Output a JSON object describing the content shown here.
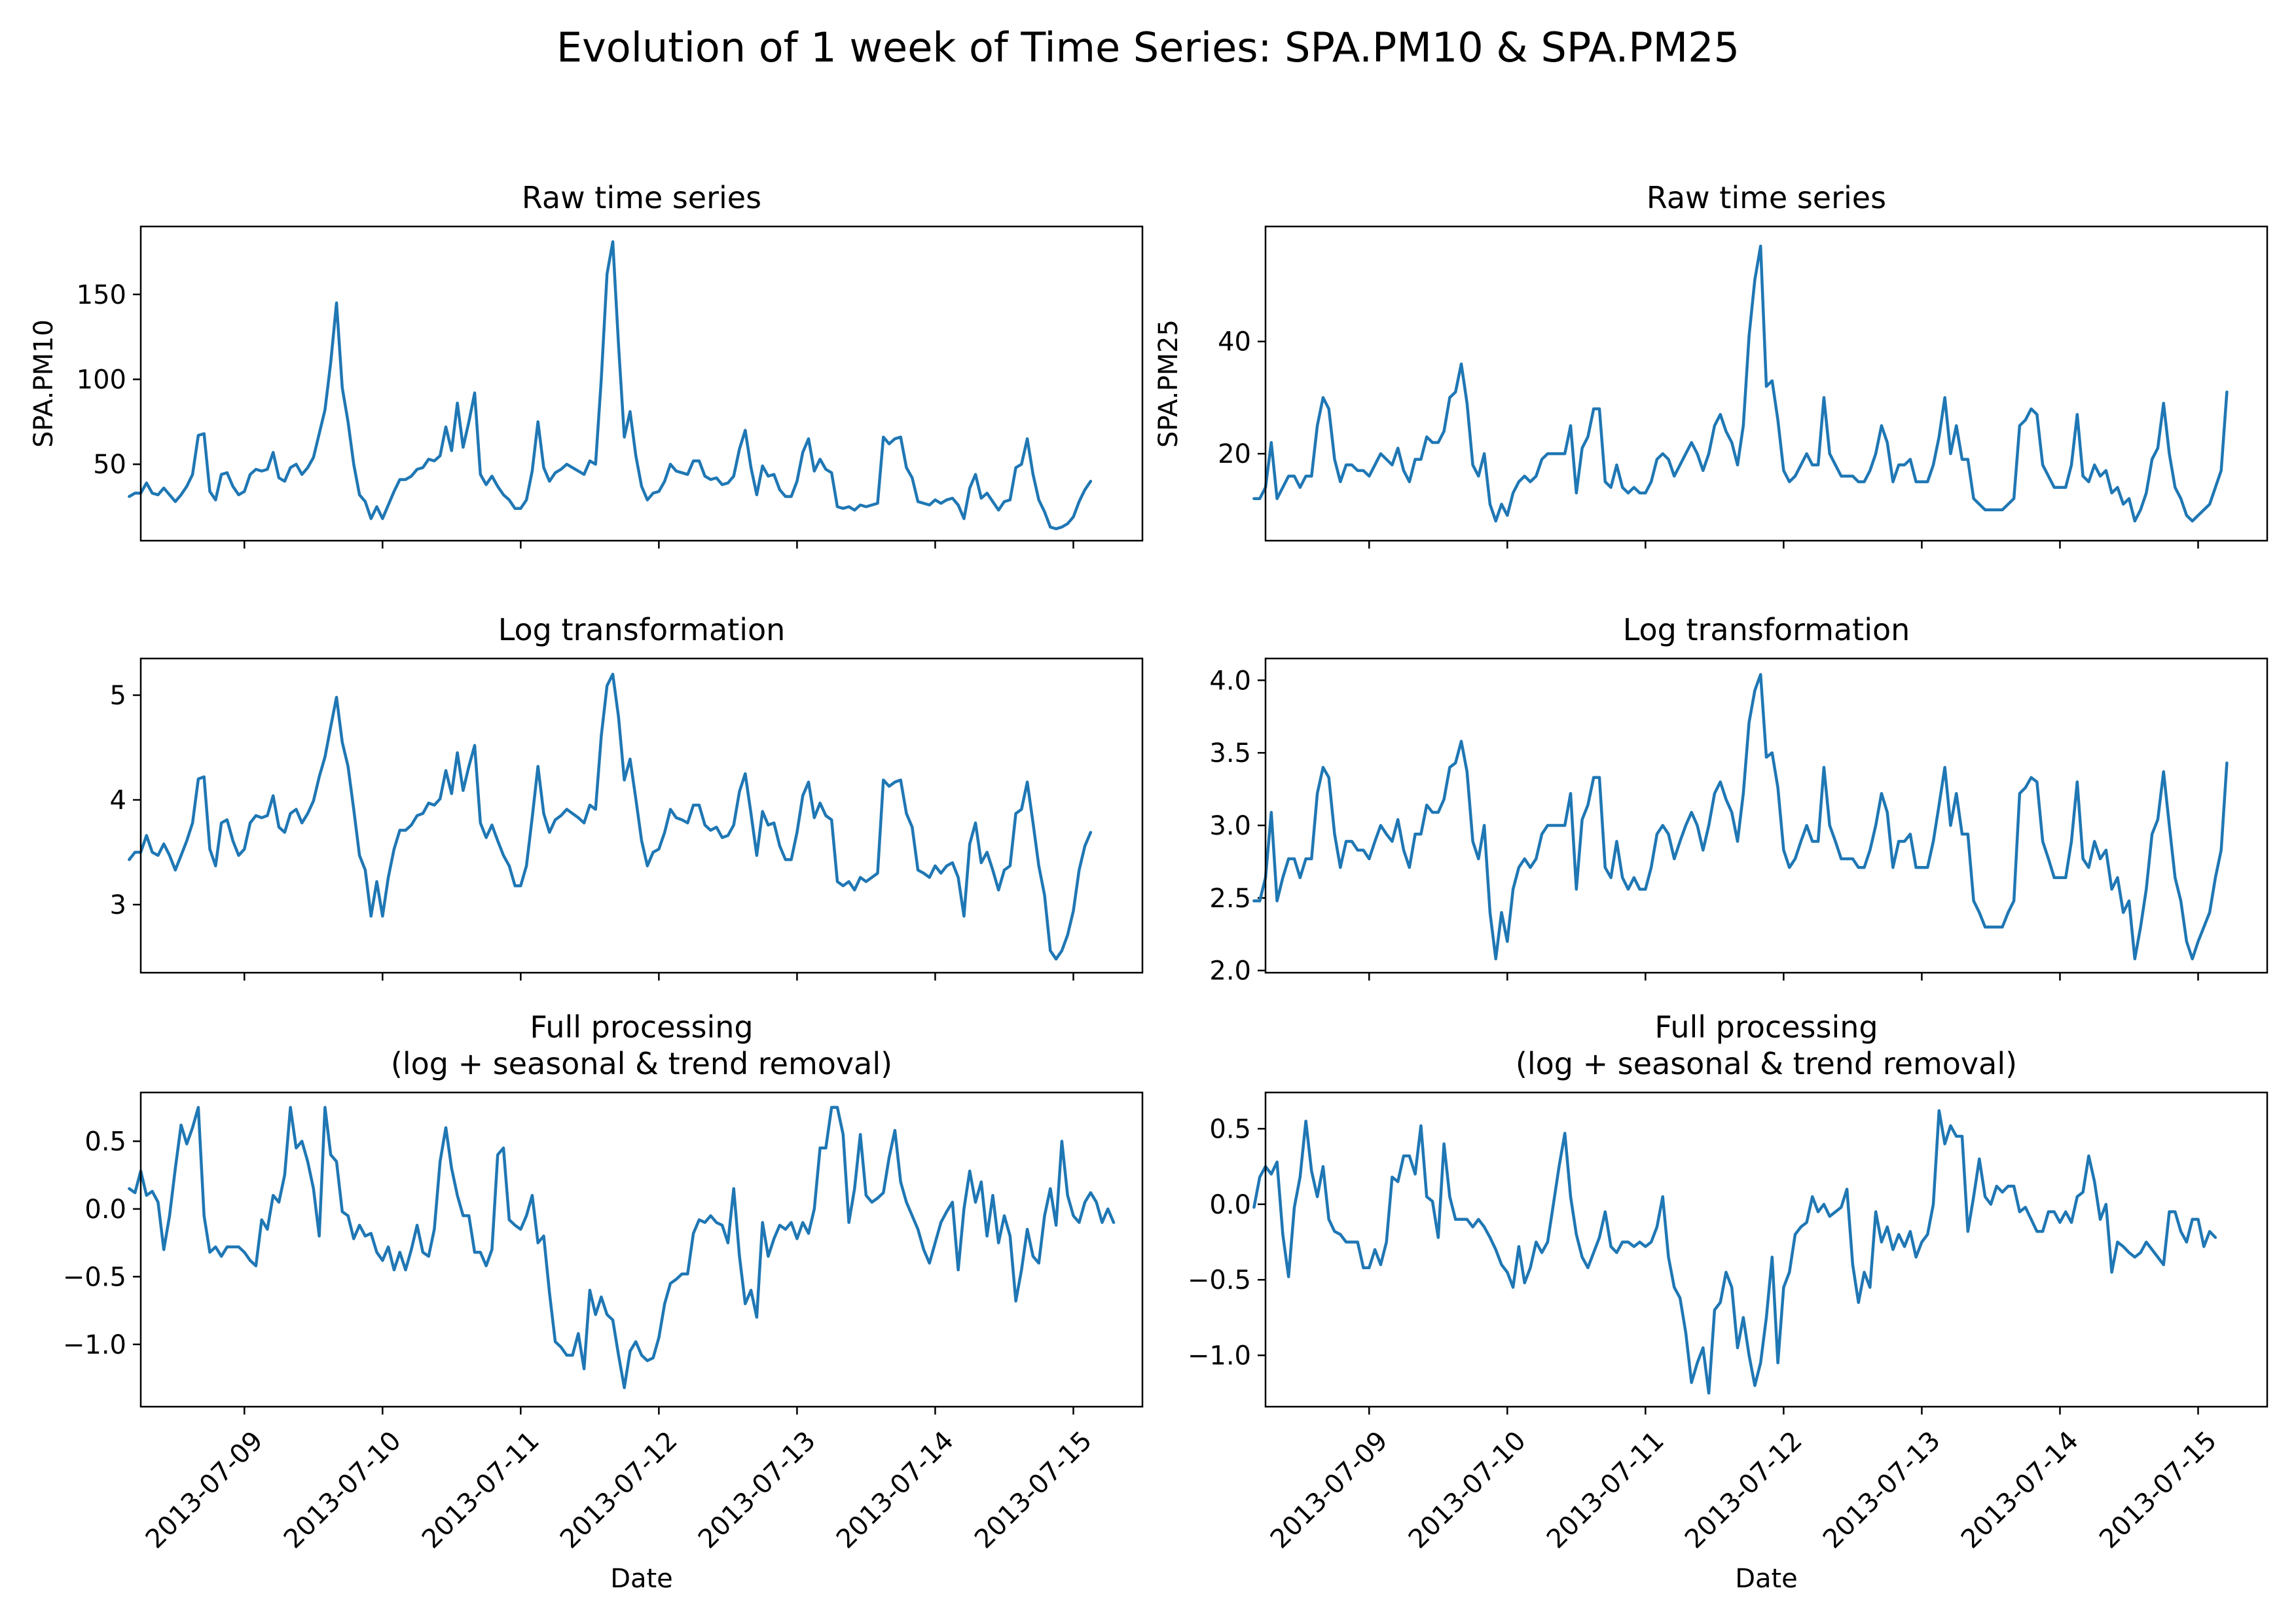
{
  "figure": {
    "title": "Evolution of 1 week of Time Series: SPA.PM10 & SPA.PM25",
    "line_color": "#1f77b4"
  },
  "chart_data": [
    {
      "type": "line",
      "title": "Raw time series",
      "xlabel": "",
      "ylabel": "SPA.PM10",
      "x_ticks": [
        "2013-07-09",
        "2013-07-10",
        "2013-07-11",
        "2013-07-12",
        "2013-07-13",
        "2013-07-14",
        "2013-07-15"
      ],
      "x_range": [
        "2013-07-08T06:00",
        "2013-07-15T12:00"
      ],
      "x_start": "2013-07-08T04:00",
      "x_step_hours": 1,
      "y_ticks": [
        50,
        100,
        150
      ],
      "ylim": [
        5,
        190
      ],
      "grid": false,
      "values": [
        31,
        33,
        33,
        39,
        33,
        32,
        36,
        32,
        28,
        32,
        37,
        44,
        67,
        68,
        34,
        29,
        44,
        45,
        37,
        32,
        34,
        44,
        47,
        46,
        47,
        57,
        42,
        40,
        48,
        50,
        44,
        48,
        54,
        68,
        82,
        110,
        145,
        95,
        75,
        50,
        32,
        28,
        18,
        25,
        18,
        26,
        34,
        41,
        41,
        43,
        47,
        48,
        53,
        52,
        55,
        72,
        58,
        86,
        60,
        75,
        92,
        44,
        38,
        43,
        37,
        32,
        29,
        24,
        24,
        29,
        46,
        75,
        48,
        40,
        45,
        47,
        50,
        48,
        46,
        44,
        52,
        50,
        100,
        162,
        181,
        120,
        66,
        81,
        55,
        37,
        29,
        33,
        34,
        40,
        50,
        46,
        45,
        44,
        52,
        52,
        43,
        41,
        42,
        38,
        39,
        43,
        59,
        70,
        48,
        32,
        49,
        43,
        44,
        35,
        31,
        31,
        40,
        57,
        65,
        46,
        53,
        47,
        45,
        25,
        24,
        25,
        23,
        26,
        25,
        26,
        27,
        66,
        62,
        65,
        66,
        48,
        42,
        28,
        27,
        26,
        29,
        27,
        29,
        30,
        26,
        18,
        36,
        44,
        30,
        33,
        28,
        23,
        28,
        29,
        48,
        50,
        65,
        44,
        29,
        22,
        13,
        12,
        13,
        15,
        19,
        28,
        35,
        40
      ]
    },
    {
      "type": "line",
      "title": "Raw time series",
      "xlabel": "",
      "ylabel": "SPA.PM25",
      "x_ticks": [
        "2013-07-09",
        "2013-07-10",
        "2013-07-11",
        "2013-07-12",
        "2013-07-13",
        "2013-07-14",
        "2013-07-15"
      ],
      "x_range": [
        "2013-07-08T06:00",
        "2013-07-15T12:00"
      ],
      "x_start": "2013-07-08T04:00",
      "x_step_hours": 1,
      "y_ticks": [
        20,
        40
      ],
      "ylim": [
        4.5,
        60.5
      ],
      "grid": false,
      "values": [
        12,
        12,
        14,
        22,
        12,
        14,
        16,
        16,
        14,
        16,
        16,
        25,
        30,
        28,
        19,
        15,
        18,
        18,
        17,
        17,
        16,
        18,
        20,
        19,
        18,
        21,
        17,
        15,
        19,
        19,
        23,
        22,
        22,
        24,
        30,
        31,
        36,
        29,
        18,
        16,
        20,
        11,
        8,
        11,
        9,
        13,
        15,
        16,
        15,
        16,
        19,
        20,
        20,
        20,
        20,
        25,
        13,
        21,
        23,
        28,
        28,
        15,
        14,
        18,
        14,
        13,
        14,
        13,
        13,
        15,
        19,
        20,
        19,
        16,
        18,
        20,
        22,
        20,
        17,
        20,
        25,
        27,
        24,
        22,
        18,
        25,
        41,
        51,
        57,
        32,
        33,
        26,
        17,
        15,
        16,
        18,
        20,
        18,
        18,
        30,
        20,
        18,
        16,
        16,
        16,
        15,
        15,
        17,
        20,
        25,
        22,
        15,
        18,
        18,
        19,
        15,
        15,
        15,
        18,
        23,
        30,
        20,
        25,
        19,
        19,
        12,
        11,
        10,
        10,
        10,
        10,
        11,
        12,
        25,
        26,
        28,
        27,
        18,
        16,
        14,
        14,
        14,
        18,
        27,
        16,
        15,
        18,
        16,
        17,
        13,
        14,
        11,
        12,
        8,
        10,
        13,
        19,
        21,
        29,
        20,
        14,
        12,
        9,
        8,
        9,
        10,
        11,
        14,
        17,
        31
      ]
    },
    {
      "type": "line",
      "title": "Log transformation",
      "xlabel": "",
      "ylabel": "",
      "x_ticks": [
        "2013-07-09",
        "2013-07-10",
        "2013-07-11",
        "2013-07-12",
        "2013-07-13",
        "2013-07-14",
        "2013-07-15"
      ],
      "x_range": [
        "2013-07-08T06:00",
        "2013-07-15T12:00"
      ],
      "x_start": "2013-07-08T04:00",
      "x_step_hours": 1,
      "y_ticks": [
        3,
        4,
        5
      ],
      "ylim": [
        2.35,
        5.35
      ],
      "grid": false,
      "values": [
        3.43,
        3.5,
        3.5,
        3.66,
        3.5,
        3.47,
        3.58,
        3.47,
        3.33,
        3.47,
        3.61,
        3.78,
        4.2,
        4.22,
        3.53,
        3.37,
        3.78,
        3.81,
        3.61,
        3.47,
        3.53,
        3.78,
        3.85,
        3.83,
        3.85,
        4.04,
        3.74,
        3.69,
        3.87,
        3.91,
        3.78,
        3.87,
        3.99,
        4.22,
        4.41,
        4.7,
        4.98,
        4.55,
        4.32,
        3.91,
        3.47,
        3.33,
        2.89,
        3.22,
        2.89,
        3.26,
        3.53,
        3.71,
        3.71,
        3.76,
        3.85,
        3.87,
        3.97,
        3.95,
        4.01,
        4.28,
        4.06,
        4.45,
        4.09,
        4.32,
        4.52,
        3.78,
        3.64,
        3.76,
        3.61,
        3.47,
        3.37,
        3.18,
        3.18,
        3.37,
        3.83,
        4.32,
        3.87,
        3.69,
        3.81,
        3.85,
        3.91,
        3.87,
        3.83,
        3.78,
        3.95,
        3.91,
        4.61,
        5.09,
        5.2,
        4.79,
        4.19,
        4.39,
        4.01,
        3.61,
        3.37,
        3.5,
        3.53,
        3.69,
        3.91,
        3.83,
        3.81,
        3.78,
        3.95,
        3.95,
        3.76,
        3.71,
        3.74,
        3.64,
        3.66,
        3.76,
        4.08,
        4.25,
        3.87,
        3.47,
        3.89,
        3.76,
        3.78,
        3.56,
        3.43,
        3.43,
        3.69,
        4.04,
        4.17,
        3.83,
        3.97,
        3.85,
        3.81,
        3.22,
        3.18,
        3.22,
        3.14,
        3.26,
        3.22,
        3.26,
        3.3,
        4.19,
        4.13,
        4.17,
        4.19,
        3.87,
        3.74,
        3.33,
        3.3,
        3.26,
        3.37,
        3.3,
        3.37,
        3.4,
        3.26,
        2.89,
        3.58,
        3.78,
        3.4,
        3.5,
        3.33,
        3.14,
        3.33,
        3.37,
        3.87,
        3.91,
        4.17,
        3.78,
        3.37,
        3.09,
        2.56,
        2.48,
        2.56,
        2.71,
        2.94,
        3.33,
        3.56,
        3.69
      ]
    },
    {
      "type": "line",
      "title": "Log transformation",
      "xlabel": "",
      "ylabel": "",
      "x_ticks": [
        "2013-07-09",
        "2013-07-10",
        "2013-07-11",
        "2013-07-12",
        "2013-07-13",
        "2013-07-14",
        "2013-07-15"
      ],
      "x_range": [
        "2013-07-08T06:00",
        "2013-07-15T12:00"
      ],
      "x_start": "2013-07-08T04:00",
      "x_step_hours": 1,
      "y_ticks": [
        "2.0",
        "2.5",
        "3.0",
        "3.5",
        "4.0"
      ],
      "ylim": [
        1.985,
        4.15
      ],
      "grid": false,
      "values": [
        2.48,
        2.48,
        2.64,
        3.09,
        2.48,
        2.64,
        2.77,
        2.77,
        2.64,
        2.77,
        2.77,
        3.22,
        3.4,
        3.33,
        2.94,
        2.71,
        2.89,
        2.89,
        2.83,
        2.83,
        2.77,
        2.89,
        3.0,
        2.94,
        2.89,
        3.04,
        2.83,
        2.71,
        2.94,
        2.94,
        3.14,
        3.09,
        3.09,
        3.18,
        3.4,
        3.43,
        3.58,
        3.37,
        2.89,
        2.77,
        3.0,
        2.4,
        2.08,
        2.4,
        2.2,
        2.56,
        2.71,
        2.77,
        2.71,
        2.77,
        2.94,
        3.0,
        3.0,
        3.0,
        3.0,
        3.22,
        2.56,
        3.04,
        3.14,
        3.33,
        3.33,
        2.71,
        2.64,
        2.89,
        2.64,
        2.56,
        2.64,
        2.56,
        2.56,
        2.71,
        2.94,
        3.0,
        2.94,
        2.77,
        2.89,
        3.0,
        3.09,
        3.0,
        2.83,
        3.0,
        3.22,
        3.3,
        3.18,
        3.09,
        2.89,
        3.22,
        3.71,
        3.93,
        4.04,
        3.47,
        3.5,
        3.26,
        2.83,
        2.71,
        2.77,
        2.89,
        3.0,
        2.89,
        2.89,
        3.4,
        3.0,
        2.89,
        2.77,
        2.77,
        2.77,
        2.71,
        2.71,
        2.83,
        3.0,
        3.22,
        3.09,
        2.71,
        2.89,
        2.89,
        2.94,
        2.71,
        2.71,
        2.71,
        2.89,
        3.14,
        3.4,
        3.0,
        3.22,
        2.94,
        2.94,
        2.48,
        2.4,
        2.3,
        2.3,
        2.3,
        2.3,
        2.4,
        2.48,
        3.22,
        3.26,
        3.33,
        3.3,
        2.89,
        2.77,
        2.64,
        2.64,
        2.64,
        2.89,
        3.3,
        2.77,
        2.71,
        2.89,
        2.77,
        2.83,
        2.56,
        2.64,
        2.4,
        2.48,
        2.08,
        2.3,
        2.56,
        2.94,
        3.04,
        3.37,
        3.0,
        2.64,
        2.48,
        2.2,
        2.08,
        2.2,
        2.3,
        2.4,
        2.64,
        2.83,
        3.43
      ]
    },
    {
      "type": "line",
      "title": "Full processing\n(log + seasonal & trend removal)",
      "xlabel": "Date",
      "ylabel": "",
      "x_ticks": [
        "2013-07-09",
        "2013-07-10",
        "2013-07-11",
        "2013-07-12",
        "2013-07-13",
        "2013-07-14",
        "2013-07-15"
      ],
      "x_range": [
        "2013-07-08T06:00",
        "2013-07-15T12:00"
      ],
      "x_start": "2013-07-08T04:00",
      "x_step_hours": 1,
      "y_ticks": [
        "−1.0",
        "−0.5",
        "0.0",
        "0.5"
      ],
      "y_tick_values": [
        -1.0,
        -0.5,
        0.0,
        0.5
      ],
      "ylim": [
        -1.46,
        0.86
      ],
      "grid": false,
      "values": [
        0.15,
        0.12,
        0.28,
        0.1,
        0.13,
        0.05,
        -0.3,
        -0.05,
        0.3,
        0.62,
        0.48,
        0.6,
        0.75,
        -0.05,
        -0.32,
        -0.28,
        -0.35,
        -0.28,
        -0.28,
        -0.28,
        -0.32,
        -0.38,
        -0.42,
        -0.08,
        -0.15,
        0.1,
        0.05,
        0.25,
        0.75,
        0.45,
        0.5,
        0.35,
        0.15,
        -0.2,
        0.75,
        0.4,
        0.35,
        -0.02,
        -0.05,
        -0.22,
        -0.12,
        -0.2,
        -0.18,
        -0.32,
        -0.38,
        -0.28,
        -0.45,
        -0.32,
        -0.45,
        -0.3,
        -0.12,
        -0.32,
        -0.35,
        -0.15,
        0.35,
        0.6,
        0.3,
        0.1,
        -0.05,
        -0.05,
        -0.32,
        -0.32,
        -0.42,
        -0.3,
        0.4,
        0.45,
        -0.08,
        -0.12,
        -0.15,
        -0.05,
        0.1,
        -0.25,
        -0.2,
        -0.62,
        -0.98,
        -1.02,
        -1.08,
        -1.08,
        -0.92,
        -1.18,
        -0.6,
        -0.78,
        -0.65,
        -0.78,
        -0.82,
        -1.08,
        -1.32,
        -1.05,
        -0.98,
        -1.08,
        -1.12,
        -1.1,
        -0.95,
        -0.7,
        -0.55,
        -0.52,
        -0.48,
        -0.48,
        -0.18,
        -0.08,
        -0.1,
        -0.05,
        -0.1,
        -0.12,
        -0.25,
        0.15,
        -0.35,
        -0.7,
        -0.6,
        -0.8,
        -0.1,
        -0.35,
        -0.22,
        -0.12,
        -0.15,
        -0.1,
        -0.22,
        -0.1,
        -0.18,
        0.0,
        0.45,
        0.45,
        0.75,
        0.75,
        0.55,
        -0.1,
        0.15,
        0.55,
        0.1,
        0.05,
        0.08,
        0.12,
        0.38,
        0.58,
        0.2,
        0.05,
        -0.05,
        -0.15,
        -0.3,
        -0.4,
        -0.25,
        -0.1,
        -0.02,
        0.05,
        -0.45,
        0.0,
        0.28,
        0.05,
        0.2,
        -0.2,
        0.1,
        -0.25,
        -0.05,
        -0.2,
        -0.68,
        -0.45,
        -0.15,
        -0.35,
        -0.4,
        -0.05,
        0.15,
        -0.12,
        0.5,
        0.1,
        -0.05,
        -0.1,
        0.05,
        0.12,
        0.05,
        -0.1,
        0.0,
        -0.1
      ]
    },
    {
      "type": "line",
      "title": "Full processing\n(log + seasonal & trend removal)",
      "xlabel": "Date",
      "ylabel": "",
      "x_ticks": [
        "2013-07-09",
        "2013-07-10",
        "2013-07-11",
        "2013-07-12",
        "2013-07-13",
        "2013-07-14",
        "2013-07-15"
      ],
      "x_range": [
        "2013-07-08T06:00",
        "2013-07-15T12:00"
      ],
      "x_start": "2013-07-08T04:00",
      "x_step_hours": 1,
      "y_ticks": [
        "−1.0",
        "−0.5",
        "0.0",
        "0.5"
      ],
      "y_tick_values": [
        -1.0,
        -0.5,
        0.0,
        0.5
      ],
      "ylim": [
        -1.34,
        0.74
      ],
      "grid": false,
      "values": [
        -0.02,
        0.18,
        0.25,
        0.2,
        0.28,
        -0.2,
        -0.48,
        -0.02,
        0.18,
        0.55,
        0.22,
        0.05,
        0.25,
        -0.1,
        -0.18,
        -0.2,
        -0.25,
        -0.25,
        -0.25,
        -0.42,
        -0.42,
        -0.3,
        -0.4,
        -0.25,
        0.18,
        0.15,
        0.32,
        0.32,
        0.2,
        0.52,
        0.05,
        0.02,
        -0.22,
        0.4,
        0.05,
        -0.1,
        -0.1,
        -0.1,
        -0.15,
        -0.1,
        -0.15,
        -0.22,
        -0.3,
        -0.4,
        -0.45,
        -0.55,
        -0.28,
        -0.52,
        -0.42,
        -0.25,
        -0.32,
        -0.25,
        0.0,
        0.25,
        0.47,
        0.05,
        -0.2,
        -0.35,
        -0.42,
        -0.32,
        -0.22,
        -0.05,
        -0.28,
        -0.32,
        -0.25,
        -0.25,
        -0.28,
        -0.25,
        -0.28,
        -0.25,
        -0.15,
        0.05,
        -0.35,
        -0.55,
        -0.62,
        -0.85,
        -1.18,
        -1.05,
        -0.95,
        -1.25,
        -0.7,
        -0.65,
        -0.45,
        -0.55,
        -0.95,
        -0.75,
        -1.0,
        -1.2,
        -1.05,
        -0.75,
        -0.35,
        -1.05,
        -0.55,
        -0.45,
        -0.2,
        -0.15,
        -0.12,
        0.05,
        -0.05,
        0.0,
        -0.08,
        -0.05,
        -0.02,
        0.1,
        -0.4,
        -0.65,
        -0.45,
        -0.55,
        -0.05,
        -0.25,
        -0.15,
        -0.3,
        -0.2,
        -0.28,
        -0.18,
        -0.35,
        -0.25,
        -0.2,
        0.0,
        0.62,
        0.4,
        0.52,
        0.45,
        0.45,
        -0.18,
        0.05,
        0.3,
        0.05,
        0.0,
        0.12,
        0.08,
        0.12,
        0.12,
        -0.05,
        -0.02,
        -0.1,
        -0.18,
        -0.18,
        -0.05,
        -0.05,
        -0.12,
        -0.05,
        -0.12,
        0.05,
        0.08,
        0.32,
        0.15,
        -0.1,
        0.0,
        -0.45,
        -0.25,
        -0.28,
        -0.32,
        -0.35,
        -0.32,
        -0.25,
        -0.3,
        -0.35,
        -0.4,
        -0.05,
        -0.05,
        -0.18,
        -0.25,
        -0.1,
        -0.1,
        -0.28,
        -0.18,
        -0.22
      ]
    }
  ]
}
